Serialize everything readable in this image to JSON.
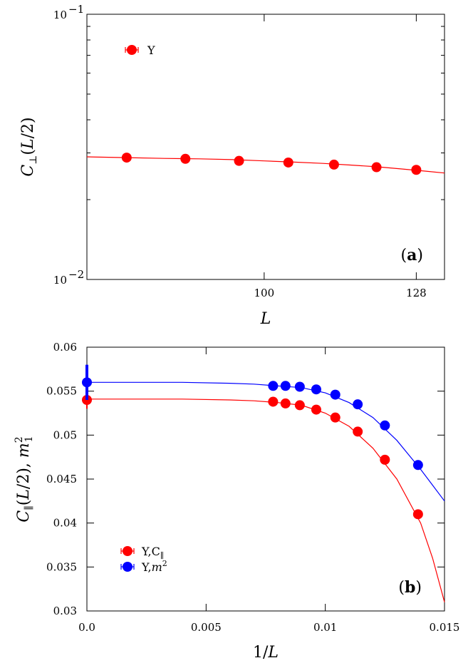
{
  "chart_data": [
    {
      "id": "a",
      "type": "scatter",
      "panel_label": "(a)",
      "xlabel": "L",
      "ylabel": "C⊥(L/2)",
      "xscale": "log",
      "yscale": "log",
      "xlim": [
        75,
        134
      ],
      "ylim": [
        0.01,
        0.1
      ],
      "xticks": [
        {
          "value": 100,
          "label": "100"
        },
        {
          "value": 128,
          "label": "128"
        }
      ],
      "yticks": [
        {
          "value": 0.01,
          "label": "10",
          "exp": "−2"
        },
        {
          "value": 0.1,
          "label": "10",
          "exp": "−1"
        }
      ],
      "legend_position": "top-left",
      "series": [
        {
          "name": "Y",
          "color": "#ff0000",
          "x": [
            80,
            88,
            96,
            104,
            112,
            120,
            128
          ],
          "y": [
            0.0288,
            0.0285,
            0.028,
            0.0276,
            0.0271,
            0.0265,
            0.0259
          ]
        }
      ],
      "fits": [
        {
          "color": "#ff0000",
          "x": [
            75,
            80,
            85,
            90,
            95,
            100,
            105,
            110,
            115,
            120,
            125,
            130,
            134
          ],
          "y": [
            0.029,
            0.0288,
            0.0286,
            0.0285,
            0.0283,
            0.028,
            0.0277,
            0.0274,
            0.027,
            0.0266,
            0.0261,
            0.0256,
            0.0252
          ]
        }
      ]
    },
    {
      "id": "b",
      "type": "scatter",
      "panel_label": "(b)",
      "xlabel": "1/L",
      "ylabel": "C∥(L/2), m₁²",
      "xlim": [
        0,
        0.015
      ],
      "ylim": [
        0.03,
        0.06
      ],
      "xticks": [
        {
          "value": 0,
          "label": "0.0"
        },
        {
          "value": 0.005,
          "label": "0.005"
        },
        {
          "value": 0.01,
          "label": "0.01"
        },
        {
          "value": 0.015,
          "label": "0.015"
        }
      ],
      "yticks": [
        {
          "value": 0.03,
          "label": "0.03"
        },
        {
          "value": 0.035,
          "label": "0.035"
        },
        {
          "value": 0.04,
          "label": "0.04"
        },
        {
          "value": 0.045,
          "label": "0.045"
        },
        {
          "value": 0.05,
          "label": "0.05"
        },
        {
          "value": 0.055,
          "label": "0.055"
        },
        {
          "value": 0.06,
          "label": "0.06"
        }
      ],
      "legend_position": "bottom-left",
      "series": [
        {
          "name": "Y,C∥",
          "legend_main": "Y,C",
          "legend_sub": "∥",
          "color": "#ff0000",
          "x": [
            0,
            0.00781,
            0.00833,
            0.00893,
            0.00962,
            0.01042,
            0.01136,
            0.0125,
            0.01389
          ],
          "y": [
            0.054,
            0.0538,
            0.0536,
            0.0534,
            0.0529,
            0.052,
            0.0504,
            0.0472,
            0.041
          ],
          "yerr": [
            0.001,
            0,
            0,
            0,
            0,
            0,
            0,
            0,
            0
          ]
        },
        {
          "name": "Y,m²",
          "legend_main": "Y,",
          "legend_sub": "m²",
          "color": "#0000ff",
          "x": [
            0,
            0.00781,
            0.00833,
            0.00893,
            0.00962,
            0.01042,
            0.01136,
            0.0125,
            0.01389
          ],
          "y": [
            0.056,
            0.0556,
            0.0556,
            0.0555,
            0.0552,
            0.0546,
            0.0535,
            0.0511,
            0.0466
          ],
          "yerr": [
            0.002,
            0,
            0,
            0,
            0,
            0,
            0,
            0,
            0
          ]
        }
      ],
      "fits": [
        {
          "color": "#ff0000",
          "x": [
            0,
            0.002,
            0.004,
            0.006,
            0.007,
            0.008,
            0.009,
            0.01,
            0.011,
            0.012,
            0.013,
            0.014,
            0.0145,
            0.015
          ],
          "y": [
            0.0541,
            0.0541,
            0.0541,
            0.054,
            0.0539,
            0.0537,
            0.0534,
            0.0525,
            0.051,
            0.0485,
            0.045,
            0.04,
            0.036,
            0.031
          ]
        },
        {
          "color": "#0000ff",
          "x": [
            0,
            0.002,
            0.004,
            0.006,
            0.007,
            0.008,
            0.009,
            0.01,
            0.011,
            0.012,
            0.013,
            0.014,
            0.0145,
            0.015
          ],
          "y": [
            0.056,
            0.056,
            0.056,
            0.0559,
            0.0558,
            0.0556,
            0.0554,
            0.0548,
            0.0537,
            0.052,
            0.0494,
            0.0461,
            0.0443,
            0.0425
          ]
        }
      ]
    }
  ]
}
